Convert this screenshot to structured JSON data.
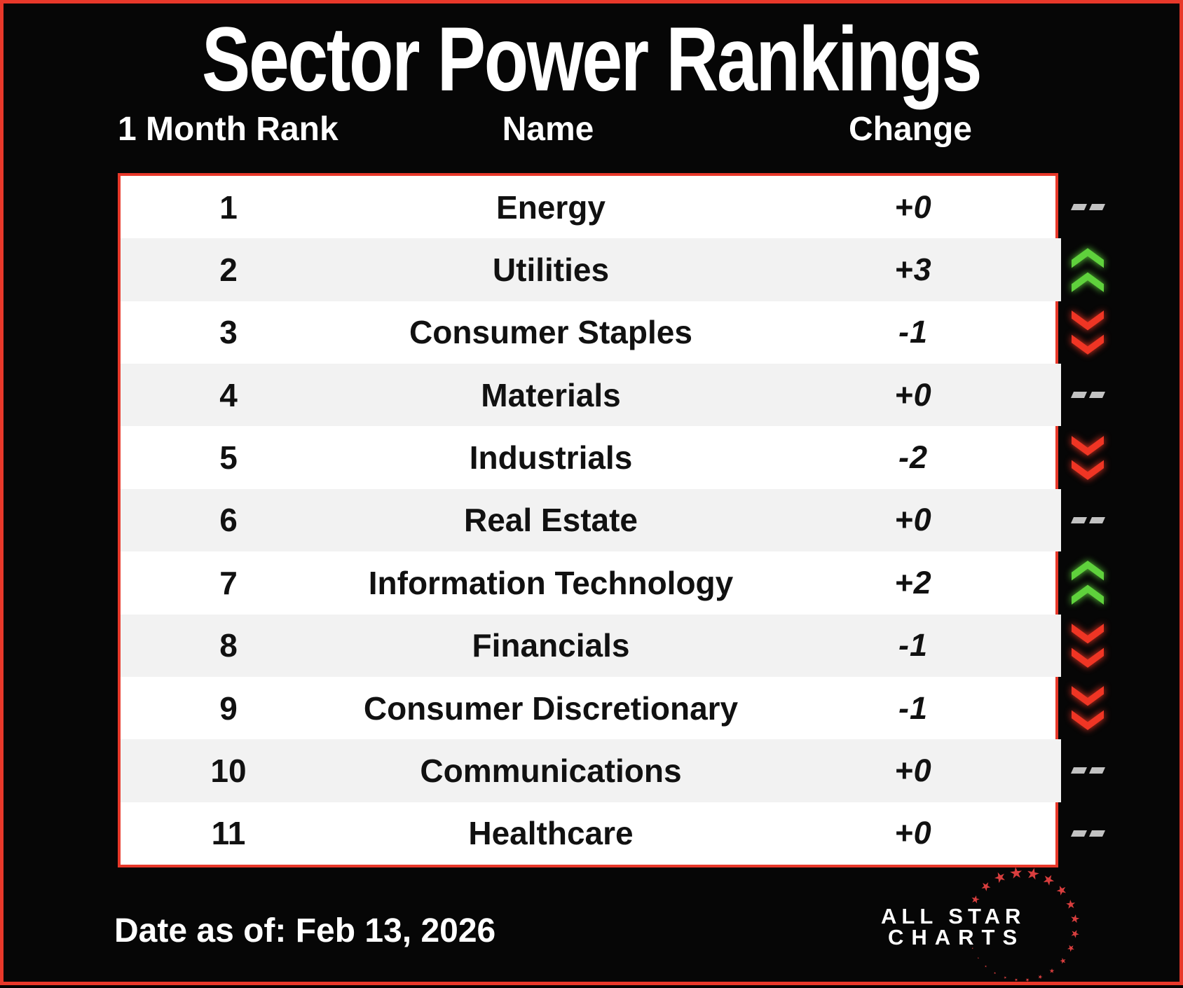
{
  "chart_data": {
    "type": "table",
    "title": "Sector Power Rankings",
    "columns": [
      "1 Month Rank",
      "Name",
      "Change"
    ],
    "rows": [
      {
        "rank": "1",
        "name": "Energy",
        "change": "+0",
        "dir": "flat"
      },
      {
        "rank": "2",
        "name": "Utilities",
        "change": "+3",
        "dir": "up"
      },
      {
        "rank": "3",
        "name": "Consumer Staples",
        "change": "-1",
        "dir": "down"
      },
      {
        "rank": "4",
        "name": "Materials",
        "change": "+0",
        "dir": "flat"
      },
      {
        "rank": "5",
        "name": "Industrials",
        "change": "-2",
        "dir": "down"
      },
      {
        "rank": "6",
        "name": "Real Estate",
        "change": "+0",
        "dir": "flat"
      },
      {
        "rank": "7",
        "name": "Information Technology",
        "change": "+2",
        "dir": "up"
      },
      {
        "rank": "8",
        "name": "Financials",
        "change": "-1",
        "dir": "down"
      },
      {
        "rank": "9",
        "name": "Consumer Discretionary",
        "change": "-1",
        "dir": "down"
      },
      {
        "rank": "10",
        "name": "Communications",
        "change": "+0",
        "dir": "flat"
      },
      {
        "rank": "11",
        "name": "Healthcare",
        "change": "+0",
        "dir": "flat"
      }
    ],
    "date_as_of": "Feb 13, 2026"
  },
  "footer": {
    "date_text": "Date as of: Feb 13, 2026"
  },
  "logo": {
    "line1": "ALL STAR",
    "line2": "CHARTS"
  },
  "colors": {
    "accent_red": "#e8382a",
    "star_red": "#d93e3e",
    "up_green": "#5fd13c",
    "down_red": "#ef3524",
    "flat_gray": "#c2c2c2",
    "row_alt": "#f2f2f2",
    "text_dark": "#111111",
    "bg_black": "#060606"
  }
}
